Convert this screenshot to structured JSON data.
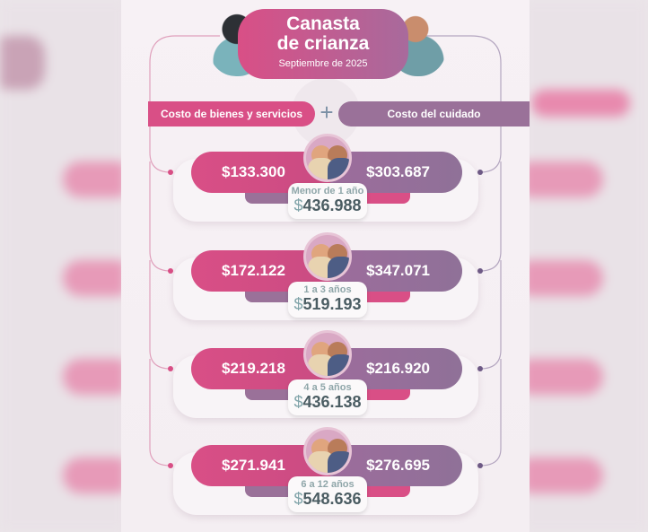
{
  "title": "Canasta de crianza",
  "title_line1": "Canasta",
  "title_line2": "de crianza",
  "subtitle": "Septiembre de 2025",
  "categories": {
    "left": "Costo de bienes y servicios",
    "plus": "+",
    "right": "Costo del cuidado"
  },
  "currency": "$",
  "rows": [
    {
      "age": "Menor de 1 año",
      "goods": "$133.300",
      "care": "$303.687",
      "total": "436.988"
    },
    {
      "age": "1 a 3 años",
      "goods": "$172.122",
      "care": "$347.071",
      "total": "519.193"
    },
    {
      "age": "4 a 5 años",
      "goods": "$219.218",
      "care": "$216.920",
      "total": "436.138"
    },
    {
      "age": "6 a 12 años",
      "goods": "$271.941",
      "care": "$276.695",
      "total": "548.636"
    }
  ],
  "colors": {
    "pink": "#d94f86",
    "purple": "#9a7199",
    "teal": "#7fa3a8"
  }
}
